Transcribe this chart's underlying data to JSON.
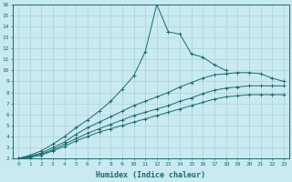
{
  "xlabel": "Humidex (Indice chaleur)",
  "bg_color": "#c8eaf0",
  "line_color": "#1a6b6b",
  "grid_color": "#a8d4d4",
  "peak_x": [
    0,
    1,
    2,
    3,
    4,
    5,
    6,
    7,
    8,
    9,
    10,
    11,
    12,
    13,
    14,
    15,
    16,
    17,
    18
  ],
  "peak_y": [
    2.0,
    2.3,
    2.7,
    3.3,
    4.0,
    4.8,
    5.5,
    6.3,
    7.2,
    8.3,
    9.5,
    11.7,
    16.0,
    13.5,
    13.3,
    11.5,
    11.2,
    10.5,
    10.0
  ],
  "upper_x": [
    0,
    1,
    2,
    3,
    4,
    5,
    6,
    7,
    8,
    9,
    10,
    11,
    12,
    13,
    14,
    15,
    16,
    17,
    18,
    19,
    20,
    21,
    22,
    23
  ],
  "upper_y": [
    2.0,
    2.2,
    2.5,
    3.0,
    3.5,
    4.2,
    4.8,
    5.3,
    5.8,
    6.3,
    6.8,
    7.2,
    7.6,
    8.0,
    8.5,
    8.9,
    9.3,
    9.6,
    9.7,
    9.8,
    9.8,
    9.7,
    9.3,
    9.0
  ],
  "mid_x": [
    0,
    1,
    2,
    3,
    4,
    5,
    6,
    7,
    8,
    9,
    10,
    11,
    12,
    13,
    14,
    15,
    16,
    17,
    18,
    19,
    20,
    21,
    22,
    23
  ],
  "mid_y": [
    2.0,
    2.2,
    2.4,
    2.8,
    3.3,
    3.8,
    4.3,
    4.7,
    5.1,
    5.5,
    5.9,
    6.2,
    6.5,
    6.8,
    7.2,
    7.5,
    7.9,
    8.2,
    8.4,
    8.5,
    8.6,
    8.6,
    8.6,
    8.6
  ],
  "low_x": [
    0,
    1,
    2,
    3,
    4,
    5,
    6,
    7,
    8,
    9,
    10,
    11,
    12,
    13,
    14,
    15,
    16,
    17,
    18,
    19,
    20,
    21,
    22,
    23
  ],
  "low_y": [
    2.0,
    2.1,
    2.3,
    2.7,
    3.1,
    3.6,
    4.0,
    4.4,
    4.7,
    5.0,
    5.3,
    5.6,
    5.9,
    6.2,
    6.5,
    6.8,
    7.1,
    7.4,
    7.6,
    7.7,
    7.8,
    7.8,
    7.8,
    7.8
  ],
  "xlim": [
    -0.5,
    23.5
  ],
  "ylim": [
    2,
    16
  ],
  "yticks": [
    2,
    3,
    4,
    5,
    6,
    7,
    8,
    9,
    10,
    11,
    12,
    13,
    14,
    15,
    16
  ],
  "xticks": [
    0,
    1,
    2,
    3,
    4,
    5,
    6,
    7,
    8,
    9,
    10,
    11,
    12,
    13,
    14,
    15,
    16,
    17,
    18,
    19,
    20,
    21,
    22,
    23
  ]
}
